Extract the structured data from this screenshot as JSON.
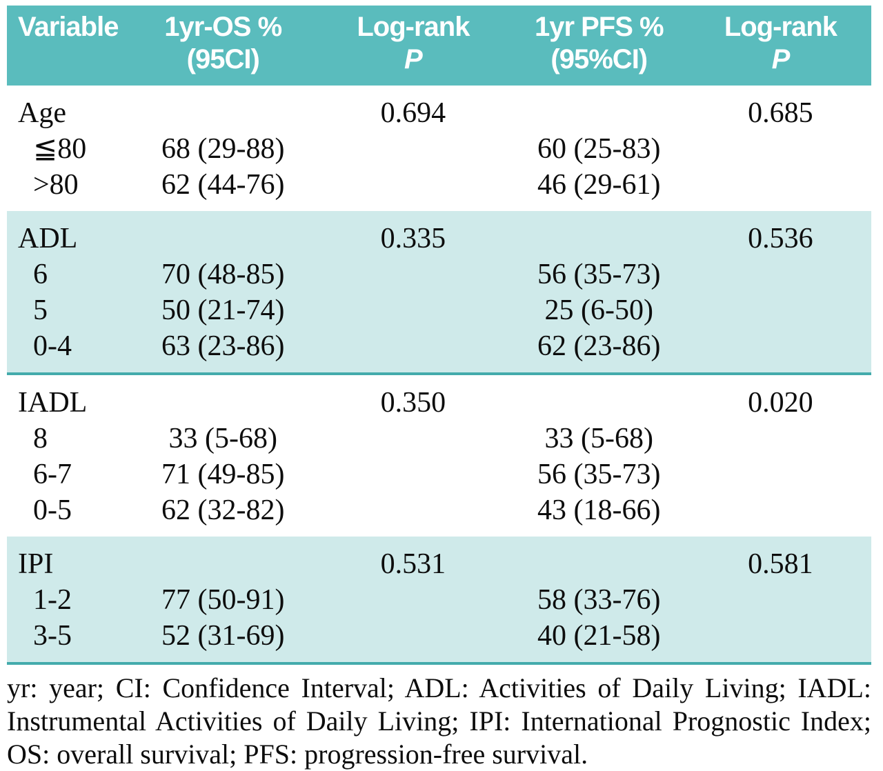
{
  "colors": {
    "header_bg": "#5abcbd",
    "shaded_row_bg": "#cfeaea",
    "divider": "#44abac"
  },
  "table": {
    "columns": {
      "variable": "Variable",
      "os": {
        "line1": "1yr-OS %",
        "line2": "(95CI)"
      },
      "logrank_os": {
        "line1": "Log-rank",
        "line2": "P"
      },
      "pfs": {
        "line1": "1yr PFS %",
        "line2": "(95%CI)"
      },
      "logrank_pfs": {
        "line1": "Log-rank",
        "line2": "P"
      }
    },
    "sections": [
      {
        "variable": "Age",
        "p_os": "0.694",
        "p_pfs": "0.685",
        "rows": [
          {
            "label": "≦80",
            "os": "68 (29-88)",
            "pfs": "60 (25-83)"
          },
          {
            "label": ">80",
            "os": "62 (44-76)",
            "pfs": "46 (29-61)"
          }
        ]
      },
      {
        "variable": "ADL",
        "p_os": "0.335",
        "p_pfs": "0.536",
        "rows": [
          {
            "label": "6",
            "os": "70 (48-85)",
            "pfs": "56 (35-73)"
          },
          {
            "label": "5",
            "os": "50 (21-74)",
            "pfs": "25 (6-50)"
          },
          {
            "label": "0-4",
            "os": "63 (23-86)",
            "pfs": "62 (23-86)"
          }
        ]
      },
      {
        "variable": "IADL",
        "p_os": "0.350",
        "p_pfs": "0.020",
        "rows": [
          {
            "label": "8",
            "os": "33 (5-68)",
            "pfs": "33 (5-68)"
          },
          {
            "label": "6-7",
            "os": "71 (49-85)",
            "pfs": "56 (35-73)"
          },
          {
            "label": "0-5",
            "os": "62 (32-82)",
            "pfs": "43 (18-66)"
          }
        ]
      },
      {
        "variable": "IPI",
        "p_os": "0.531",
        "p_pfs": "0.581",
        "rows": [
          {
            "label": "1-2",
            "os": "77 (50-91)",
            "pfs": "58 (33-76)"
          },
          {
            "label": "3-5",
            "os": "52 (31-69)",
            "pfs": "40 (21-58)"
          }
        ]
      }
    ]
  },
  "footnote": "yr: year; CI: Confidence Interval; ADL: Activities of Daily Living; IADL: Instrumental Activities of Daily Living; IPI: International Prognostic Index; OS: overall survival; PFS: progression-free survival."
}
